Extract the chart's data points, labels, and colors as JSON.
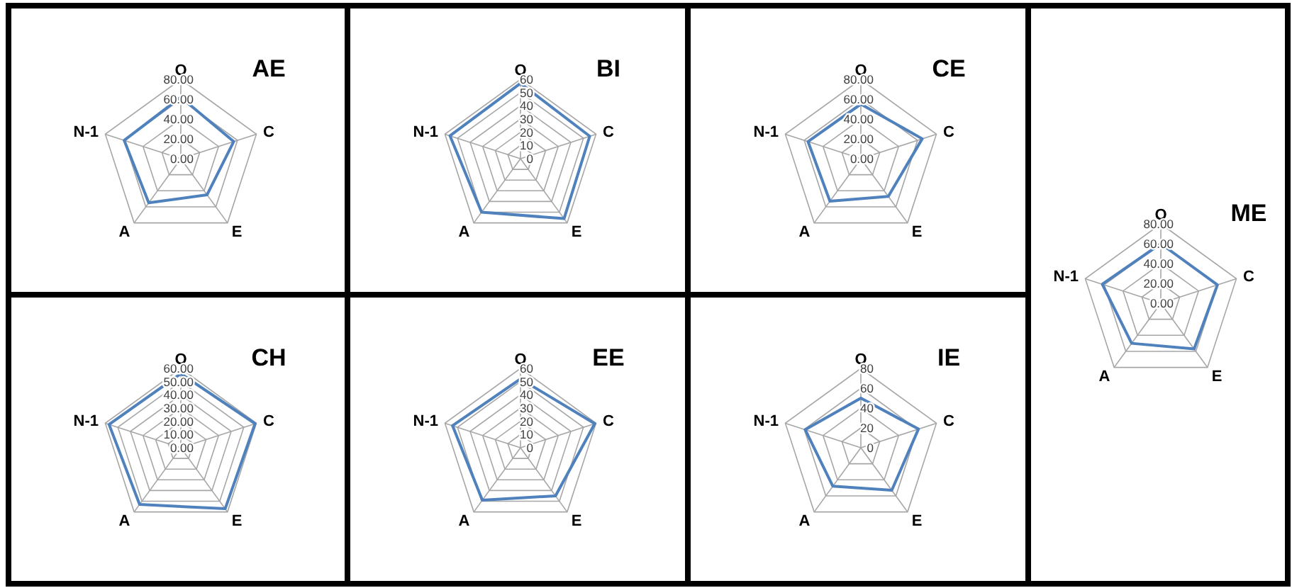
{
  "chart_data": [
    {
      "type": "radar",
      "title": "AE",
      "categories": [
        "O",
        "C",
        "E",
        "A",
        "N-1"
      ],
      "ylim": [
        0,
        80
      ],
      "yticks": [
        {
          "value": 0,
          "label": "0.00"
        },
        {
          "value": 20,
          "label": "20.00"
        },
        {
          "value": 40,
          "label": "40.00"
        },
        {
          "value": 60,
          "label": "60.00"
        },
        {
          "value": 80,
          "label": "80.00"
        }
      ],
      "grid": true,
      "series": [
        {
          "color": "#4f81bd",
          "values": [
            62,
            56,
            45,
            55,
            60
          ]
        }
      ]
    },
    {
      "type": "radar",
      "title": "BI",
      "categories": [
        "O",
        "C",
        "E",
        "A",
        "N-1"
      ],
      "ylim": [
        0,
        60
      ],
      "yticks": [
        0,
        10,
        20,
        30,
        40,
        50,
        60
      ],
      "grid": true,
      "series": [
        {
          "color": "#4f81bd",
          "values": [
            57,
            55,
            56,
            50,
            56
          ]
        }
      ]
    },
    {
      "type": "radar",
      "title": "CE",
      "categories": [
        "O",
        "C",
        "E",
        "A",
        "N-1"
      ],
      "ylim": [
        0,
        80
      ],
      "yticks": [
        {
          "value": 0,
          "label": "0.00"
        },
        {
          "value": 20,
          "label": "20.00"
        },
        {
          "value": 40,
          "label": "40.00"
        },
        {
          "value": 60,
          "label": "60.00"
        },
        {
          "value": 80,
          "label": "80.00"
        }
      ],
      "grid": true,
      "series": [
        {
          "color": "#4f81bd",
          "values": [
            55,
            65,
            47,
            53,
            56
          ]
        }
      ]
    },
    {
      "type": "radar",
      "title": "ME",
      "categories": [
        "O",
        "C",
        "E",
        "A",
        "N-1"
      ],
      "ylim": [
        0,
        80
      ],
      "yticks": [
        {
          "value": 0,
          "label": "0.00"
        },
        {
          "value": 20,
          "label": "20.00"
        },
        {
          "value": 40,
          "label": "40.00"
        },
        {
          "value": 60,
          "label": "60.00"
        },
        {
          "value": 80,
          "label": "80.00"
        }
      ],
      "grid": true,
      "series": [
        {
          "color": "#4f81bd",
          "values": [
            60,
            60,
            57,
            50,
            62
          ]
        }
      ]
    },
    {
      "type": "radar",
      "title": "CH",
      "categories": [
        "O",
        "C",
        "E",
        "A",
        "N-1"
      ],
      "ylim": [
        0,
        60
      ],
      "yticks": [
        {
          "value": 0,
          "label": "0.00"
        },
        {
          "value": 10,
          "label": "10.00"
        },
        {
          "value": 20,
          "label": "20.00"
        },
        {
          "value": 30,
          "label": "30.00"
        },
        {
          "value": 40,
          "label": "40.00"
        },
        {
          "value": 50,
          "label": "50.00"
        },
        {
          "value": 60,
          "label": "60.00"
        }
      ],
      "grid": true,
      "series": [
        {
          "color": "#4f81bd",
          "values": [
            56,
            59,
            57,
            53,
            57
          ]
        }
      ]
    },
    {
      "type": "radar",
      "title": "EE",
      "categories": [
        "O",
        "C",
        "E",
        "A",
        "N-1"
      ],
      "ylim": [
        0,
        60
      ],
      "yticks": [
        0,
        10,
        20,
        30,
        40,
        50,
        60
      ],
      "grid": true,
      "series": [
        {
          "color": "#4f81bd",
          "values": [
            52,
            59,
            45,
            49,
            54
          ]
        }
      ]
    },
    {
      "type": "radar",
      "title": "IE",
      "categories": [
        "O",
        "C",
        "E",
        "A",
        "N-1"
      ],
      "ylim": [
        0,
        80
      ],
      "yticks": [
        0,
        20,
        40,
        60,
        80
      ],
      "grid": true,
      "series": [
        {
          "color": "#4f81bd",
          "values": [
            50,
            61,
            53,
            48,
            59
          ]
        }
      ]
    }
  ]
}
